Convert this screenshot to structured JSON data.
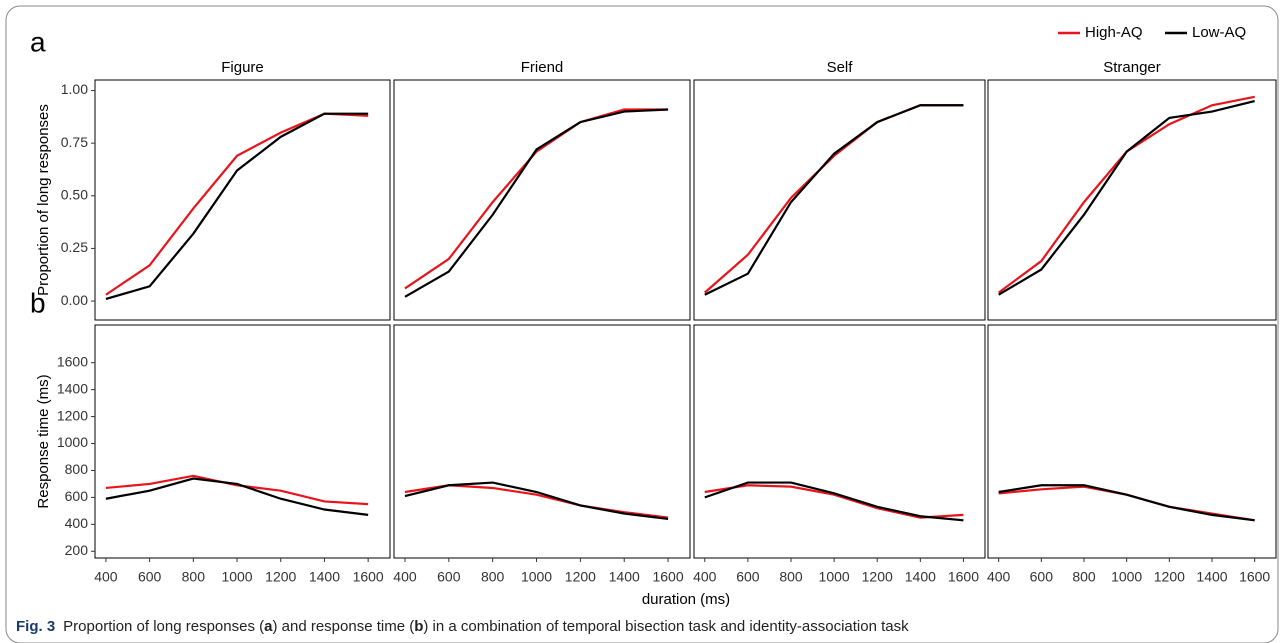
{
  "panel_labels": [
    "a",
    "b"
  ],
  "xlabel": "duration (ms)",
  "caption": {
    "label": "Fig. 3",
    "parts": [
      "Proportion of long responses (",
      "a",
      ") and response time (",
      "b",
      ") in a combination of temporal bisection task and identity-association task"
    ]
  },
  "chart_data": [
    {
      "type": "line",
      "title": "Figure",
      "ylabel": "Proportion of long responses",
      "x": [
        400,
        600,
        800,
        1000,
        1200,
        1400,
        1600
      ],
      "xlim": [
        350,
        1700
      ],
      "ylim": [
        -0.09,
        1.05
      ],
      "yticks": [
        {
          "value": 0,
          "label": "0.00"
        },
        {
          "value": 0.25,
          "label": "0.25"
        },
        {
          "value": 0.5,
          "label": "0.50"
        },
        {
          "value": 0.75,
          "label": "0.75"
        },
        {
          "value": 1,
          "label": "1.00"
        }
      ],
      "series": [
        {
          "name": "High-AQ",
          "color": "#e8141b",
          "values": [
            0.03,
            0.17,
            0.44,
            0.69,
            0.8,
            0.89,
            0.88
          ]
        },
        {
          "name": "Low-AQ",
          "color": "#000000",
          "values": [
            0.01,
            0.07,
            0.32,
            0.62,
            0.78,
            0.89,
            0.89
          ]
        }
      ]
    },
    {
      "type": "line",
      "title": "Friend",
      "x": [
        400,
        600,
        800,
        1000,
        1200,
        1400,
        1600
      ],
      "xlim": [
        350,
        1700
      ],
      "ylim": [
        -0.09,
        1.05
      ],
      "series": [
        {
          "name": "High-AQ",
          "color": "#e8141b",
          "values": [
            0.06,
            0.2,
            0.47,
            0.71,
            0.85,
            0.91,
            0.91
          ]
        },
        {
          "name": "Low-AQ",
          "color": "#000000",
          "values": [
            0.02,
            0.14,
            0.41,
            0.72,
            0.85,
            0.9,
            0.91
          ]
        }
      ]
    },
    {
      "type": "line",
      "title": "Self",
      "x": [
        400,
        600,
        800,
        1000,
        1200,
        1400,
        1600
      ],
      "xlim": [
        350,
        1700
      ],
      "ylim": [
        -0.09,
        1.05
      ],
      "series": [
        {
          "name": "High-AQ",
          "color": "#e8141b",
          "values": [
            0.04,
            0.22,
            0.49,
            0.69,
            0.85,
            0.93,
            0.93
          ]
        },
        {
          "name": "Low-AQ",
          "color": "#000000",
          "values": [
            0.03,
            0.13,
            0.47,
            0.7,
            0.85,
            0.93,
            0.93
          ]
        }
      ]
    },
    {
      "type": "line",
      "title": "Stranger",
      "x": [
        400,
        600,
        800,
        1000,
        1200,
        1400,
        1600
      ],
      "xlim": [
        350,
        1700
      ],
      "ylim": [
        -0.09,
        1.05
      ],
      "series": [
        {
          "name": "High-AQ",
          "color": "#e8141b",
          "values": [
            0.04,
            0.19,
            0.47,
            0.71,
            0.84,
            0.93,
            0.97
          ]
        },
        {
          "name": "Low-AQ",
          "color": "#000000",
          "values": [
            0.03,
            0.15,
            0.41,
            0.71,
            0.87,
            0.9,
            0.95
          ]
        }
      ]
    },
    {
      "type": "line",
      "ylabel": "Response time (ms)",
      "x": [
        400,
        600,
        800,
        1000,
        1200,
        1400,
        1600
      ],
      "xlim": [
        350,
        1700
      ],
      "ylim": [
        150,
        1880
      ],
      "xticks": [
        400,
        600,
        800,
        1000,
        1200,
        1400,
        1600
      ],
      "yticks": [
        200,
        400,
        600,
        800,
        1000,
        1200,
        1400,
        1600
      ],
      "series": [
        {
          "name": "High-AQ",
          "color": "#e8141b",
          "values": [
            670,
            700,
            760,
            690,
            650,
            570,
            550
          ]
        },
        {
          "name": "Low-AQ",
          "color": "#000000",
          "values": [
            590,
            650,
            740,
            700,
            590,
            510,
            470
          ]
        }
      ]
    },
    {
      "type": "line",
      "x": [
        400,
        600,
        800,
        1000,
        1200,
        1400,
        1600
      ],
      "xlim": [
        350,
        1700
      ],
      "ylim": [
        150,
        1880
      ],
      "xticks": [
        400,
        600,
        800,
        1000,
        1200,
        1400,
        1600
      ],
      "series": [
        {
          "name": "High-AQ",
          "color": "#e8141b",
          "values": [
            640,
            690,
            670,
            620,
            540,
            490,
            450
          ]
        },
        {
          "name": "Low-AQ",
          "color": "#000000",
          "values": [
            610,
            690,
            710,
            640,
            540,
            480,
            440
          ]
        }
      ]
    },
    {
      "type": "line",
      "x": [
        400,
        600,
        800,
        1000,
        1200,
        1400,
        1600
      ],
      "xlim": [
        350,
        1700
      ],
      "ylim": [
        150,
        1880
      ],
      "xticks": [
        400,
        600,
        800,
        1000,
        1200,
        1400,
        1600
      ],
      "series": [
        {
          "name": "High-AQ",
          "color": "#e8141b",
          "values": [
            640,
            690,
            680,
            620,
            520,
            450,
            470
          ]
        },
        {
          "name": "Low-AQ",
          "color": "#000000",
          "values": [
            600,
            710,
            710,
            630,
            530,
            460,
            430
          ]
        }
      ]
    },
    {
      "type": "line",
      "x": [
        400,
        600,
        800,
        1000,
        1200,
        1400,
        1600
      ],
      "xlim": [
        350,
        1700
      ],
      "ylim": [
        150,
        1880
      ],
      "xticks": [
        400,
        600,
        800,
        1000,
        1200,
        1400,
        1600
      ],
      "series": [
        {
          "name": "High-AQ",
          "color": "#e8141b",
          "values": [
            630,
            660,
            680,
            620,
            530,
            480,
            430
          ]
        },
        {
          "name": "Low-AQ",
          "color": "#000000",
          "values": [
            640,
            690,
            690,
            620,
            530,
            470,
            430
          ]
        }
      ]
    }
  ]
}
